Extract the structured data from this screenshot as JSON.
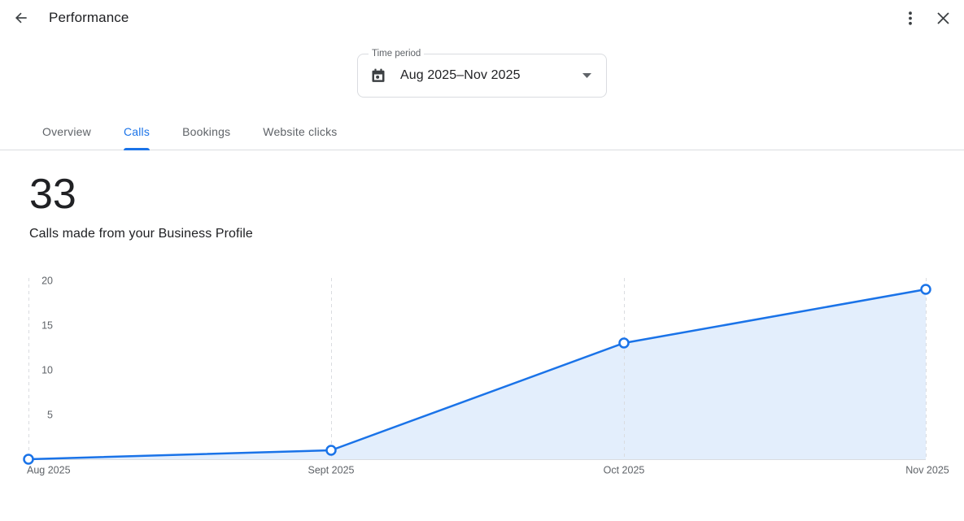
{
  "header": {
    "title": "Performance"
  },
  "time_period": {
    "label": "Time period",
    "value": "Aug 2025–Nov 2025"
  },
  "tabs": [
    {
      "label": "Overview"
    },
    {
      "label": "Calls"
    },
    {
      "label": "Bookings"
    },
    {
      "label": "Website clicks"
    }
  ],
  "active_tab": "Calls",
  "metric": {
    "value": "33",
    "description": "Calls made from your Business Profile"
  },
  "chart_data": {
    "type": "area",
    "title": "Calls made from your Business Profile",
    "x": [
      "Aug 2025",
      "Sept 2025",
      "Oct 2025",
      "Nov 2025"
    ],
    "series": [
      {
        "name": "Calls",
        "values": [
          0,
          1,
          13,
          19
        ]
      }
    ],
    "yticks": [
      5,
      10,
      15,
      20
    ],
    "ylim": [
      0,
      20
    ],
    "grid": "vertical-dashed",
    "legend": "none",
    "colors": {
      "line": "#1a73e8",
      "fill": "#e3eefc",
      "axis": "#dadce0",
      "tick_text": "#5f6368"
    }
  },
  "colors": {
    "accent": "#1a73e8",
    "text": "#202124",
    "muted": "#5f6368",
    "divider": "#dadce0"
  }
}
